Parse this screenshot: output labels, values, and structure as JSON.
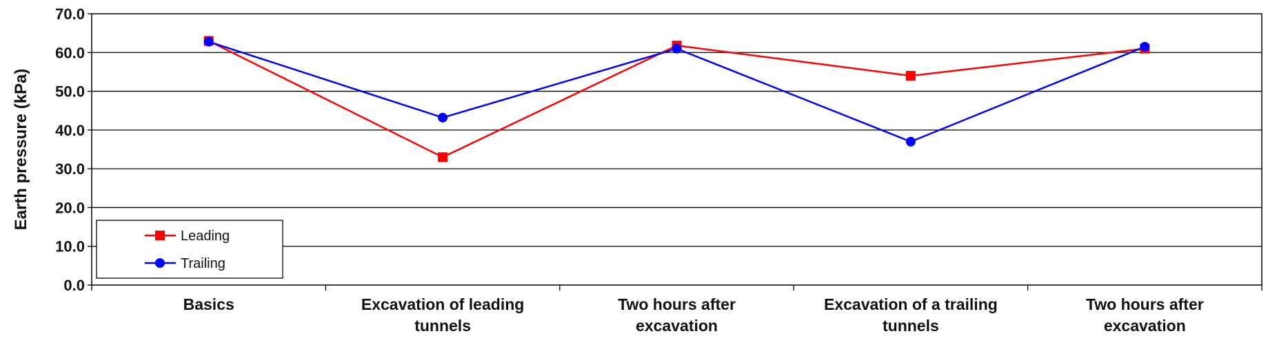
{
  "chart_data": {
    "type": "line",
    "title": "",
    "xlabel": "",
    "ylabel": "Earth pressure (kPa)",
    "ylim": [
      0,
      70
    ],
    "yticks": [
      "0.0",
      "10.0",
      "20.0",
      "30.0",
      "40.0",
      "50.0",
      "60.0",
      "70.0"
    ],
    "categories": [
      [
        "Basics"
      ],
      [
        "Excavation of leading",
        "tunnels"
      ],
      [
        "Two hours after",
        "excavation"
      ],
      [
        "Excavation of a trailing",
        "tunnels"
      ],
      [
        "Two hours after",
        "excavation"
      ]
    ],
    "grid": true,
    "legend_position": "bottom-left",
    "series": [
      {
        "name": "Leading",
        "color": "#ff0000",
        "marker": "square",
        "values": [
          63.0,
          33.0,
          61.8,
          54.0,
          61.0
        ]
      },
      {
        "name": "Trailing",
        "color": "#0000ff",
        "marker": "circle",
        "values": [
          62.8,
          43.2,
          61.0,
          37.0,
          61.5
        ]
      }
    ]
  }
}
